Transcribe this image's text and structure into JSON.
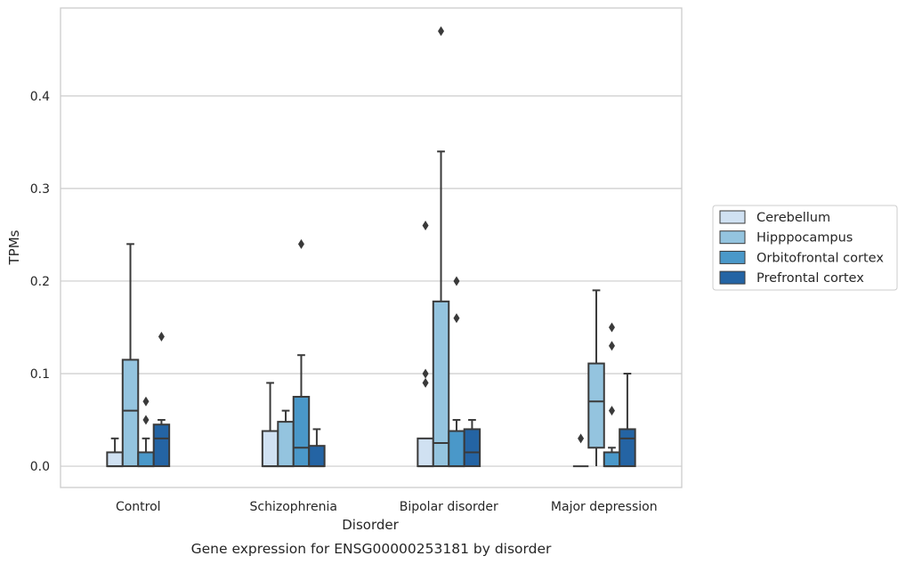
{
  "chart_data": {
    "type": "box",
    "title": "",
    "caption": "Gene expression for ENSG00000253181 by disorder",
    "xlabel": "Disorder",
    "ylabel": "TPMs",
    "ylim": [
      -0.023,
      0.495
    ],
    "yticks": [
      0.0,
      0.1,
      0.2,
      0.3,
      0.4
    ],
    "ytick_labels": [
      "0.0",
      "0.1",
      "0.2",
      "0.3",
      "0.4"
    ],
    "grid": true,
    "legend_position": "right",
    "categories": [
      "Control",
      "Schizophrenia",
      "Bipolar disorder",
      "Major depression"
    ],
    "series": [
      {
        "name": "Cerebellum",
        "color": "#d0e1f2",
        "boxes": [
          {
            "q1": 0.0,
            "median": 0.0,
            "q3": 0.015,
            "whisker_low": 0.0,
            "whisker_high": 0.03,
            "outliers": []
          },
          {
            "q1": 0.0,
            "median": 0.0,
            "q3": 0.038,
            "whisker_low": 0.0,
            "whisker_high": 0.09,
            "outliers": []
          },
          {
            "q1": 0.0,
            "median": 0.0,
            "q3": 0.03,
            "whisker_low": 0.0,
            "whisker_high": 0.03,
            "outliers": [
              0.09,
              0.1,
              0.26
            ]
          },
          {
            "q1": 0.0,
            "median": 0.0,
            "q3": 0.0,
            "whisker_low": 0.0,
            "whisker_high": 0.0,
            "outliers": [
              0.03
            ]
          }
        ]
      },
      {
        "name": "Hipppocampus",
        "color": "#94c4df",
        "boxes": [
          {
            "q1": 0.0,
            "median": 0.06,
            "q3": 0.115,
            "whisker_low": 0.0,
            "whisker_high": 0.24,
            "outliers": []
          },
          {
            "q1": 0.0,
            "median": 0.0,
            "q3": 0.048,
            "whisker_low": 0.0,
            "whisker_high": 0.06,
            "outliers": []
          },
          {
            "q1": 0.0,
            "median": 0.025,
            "q3": 0.178,
            "whisker_low": 0.0,
            "whisker_high": 0.34,
            "outliers": [
              0.47
            ]
          },
          {
            "q1": 0.02,
            "median": 0.07,
            "q3": 0.111,
            "whisker_low": 0.0,
            "whisker_high": 0.19,
            "outliers": []
          }
        ]
      },
      {
        "name": "Orbitofrontal cortex",
        "color": "#4a98c9",
        "boxes": [
          {
            "q1": 0.0,
            "median": 0.0,
            "q3": 0.015,
            "whisker_low": 0.0,
            "whisker_high": 0.03,
            "outliers": [
              0.05,
              0.07
            ]
          },
          {
            "q1": 0.0,
            "median": 0.02,
            "q3": 0.075,
            "whisker_low": 0.0,
            "whisker_high": 0.12,
            "outliers": [
              0.24
            ]
          },
          {
            "q1": 0.0,
            "median": 0.0,
            "q3": 0.038,
            "whisker_low": 0.0,
            "whisker_high": 0.05,
            "outliers": [
              0.16,
              0.2
            ]
          },
          {
            "q1": 0.0,
            "median": 0.0,
            "q3": 0.015,
            "whisker_low": 0.0,
            "whisker_high": 0.02,
            "outliers": [
              0.06,
              0.13,
              0.15
            ]
          }
        ]
      },
      {
        "name": "Prefrontal cortex",
        "color": "#2464a4",
        "boxes": [
          {
            "q1": 0.0,
            "median": 0.03,
            "q3": 0.045,
            "whisker_low": 0.0,
            "whisker_high": 0.05,
            "outliers": [
              0.14
            ]
          },
          {
            "q1": 0.0,
            "median": 0.0,
            "q3": 0.022,
            "whisker_low": 0.0,
            "whisker_high": 0.04,
            "outliers": []
          },
          {
            "q1": 0.0,
            "median": 0.015,
            "q3": 0.04,
            "whisker_low": 0.0,
            "whisker_high": 0.05,
            "outliers": []
          },
          {
            "q1": 0.0,
            "median": 0.03,
            "q3": 0.04,
            "whisker_low": 0.0,
            "whisker_high": 0.1,
            "outliers": []
          }
        ]
      }
    ]
  }
}
